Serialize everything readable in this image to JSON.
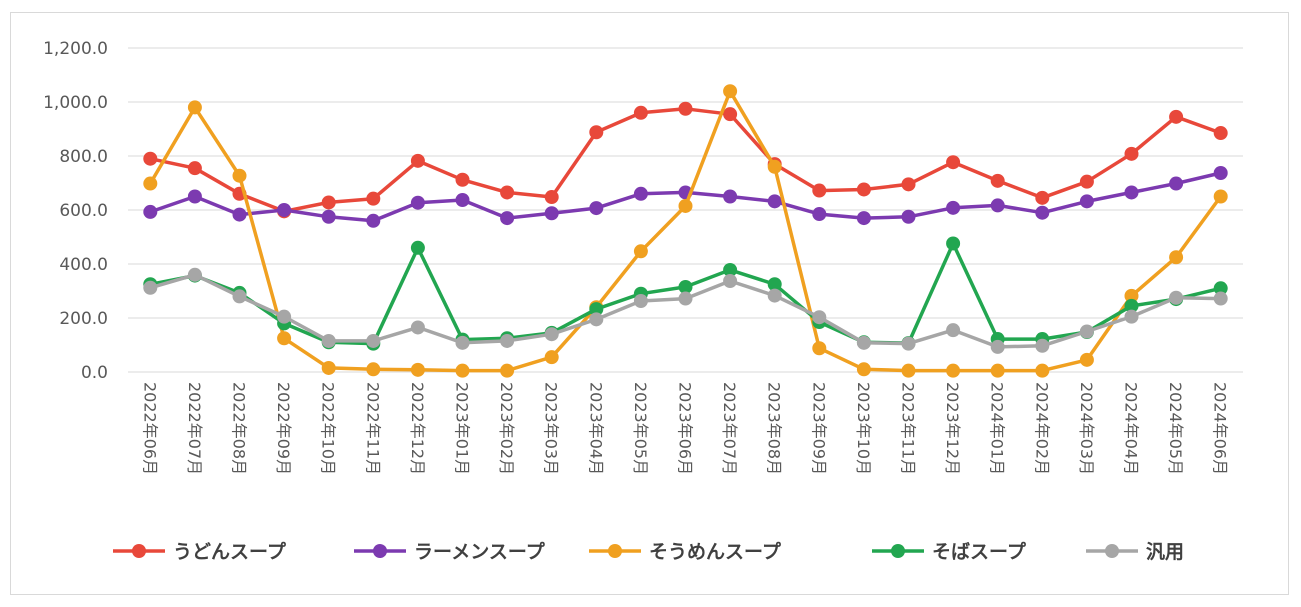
{
  "chart_data": {
    "type": "line",
    "title": "",
    "xlabel": "",
    "ylabel": "",
    "ylim": [
      0,
      1200
    ],
    "yticks": [
      "0.0",
      "200.0",
      "400.0",
      "600.0",
      "800.0",
      "1,000.0",
      "1,200.0"
    ],
    "grid": "horizontal",
    "legend_position": "bottom",
    "categories": [
      "2022年06月",
      "2022年07月",
      "2022年08月",
      "2022年09月",
      "2022年10月",
      "2022年11月",
      "2022年12月",
      "2023年01月",
      "2023年02月",
      "2023年03月",
      "2023年04月",
      "2023年05月",
      "2023年06月",
      "2023年07月",
      "2023年08月",
      "2023年09月",
      "2023年10月",
      "2023年11月",
      "2023年12月",
      "2024年01月",
      "2024年02月",
      "2024年03月",
      "2024年04月",
      "2024年05月",
      "2024年06月"
    ],
    "series": [
      {
        "name": "うどんスープ",
        "color": "#e8483a",
        "values": [
          790,
          755,
          660,
          595,
          628,
          642,
          782,
          712,
          665,
          648,
          888,
          960,
          975,
          955,
          770,
          672,
          676,
          695,
          777,
          708,
          645,
          705,
          808,
          945,
          885
        ]
      },
      {
        "name": "ラーメンスープ",
        "color": "#7c3ab0",
        "values": [
          593,
          650,
          583,
          600,
          575,
          560,
          627,
          637,
          570,
          588,
          607,
          660,
          665,
          650,
          632,
          585,
          570,
          575,
          608,
          617,
          590,
          632,
          665,
          698,
          737
        ]
      },
      {
        "name": "そうめんスープ",
        "color": "#f0a020",
        "values": [
          698,
          980,
          727,
          125,
          15,
          10,
          8,
          5,
          5,
          55,
          240,
          447,
          615,
          1040,
          760,
          88,
          10,
          5,
          5,
          5,
          5,
          45,
          282,
          425,
          650
        ]
      },
      {
        "name": "そばスープ",
        "color": "#22a650",
        "values": [
          325,
          357,
          293,
          180,
          110,
          105,
          460,
          120,
          125,
          145,
          233,
          290,
          315,
          378,
          325,
          185,
          110,
          107,
          476,
          122,
          122,
          148,
          245,
          270,
          310
        ]
      },
      {
        "name": "汎用",
        "color": "#a6a6a6",
        "values": [
          312,
          360,
          280,
          205,
          115,
          115,
          165,
          108,
          115,
          140,
          195,
          263,
          272,
          337,
          283,
          203,
          108,
          105,
          155,
          93,
          97,
          150,
          205,
          275,
          272
        ]
      }
    ]
  }
}
